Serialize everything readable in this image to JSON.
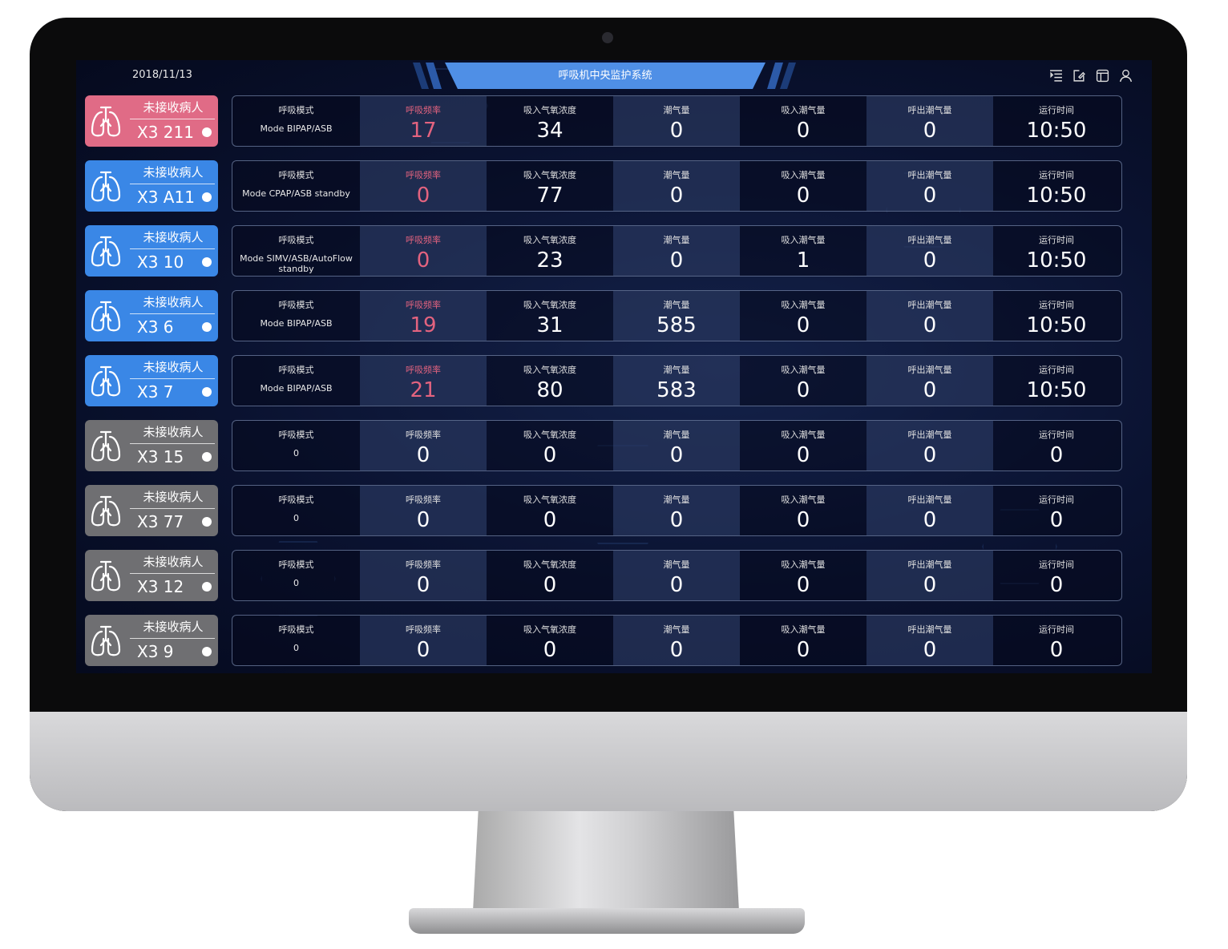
{
  "header": {
    "date": "2018/11/13",
    "title": "呼吸机中央监护系统",
    "icons": [
      "list-icon",
      "edit-icon",
      "layout-icon",
      "user-icon"
    ]
  },
  "colors": {
    "alarm": "#e06b86",
    "active": "#3a87e6",
    "inactive": "#6f6f72",
    "rate_alarm_text": "#e3637f",
    "title_bar": "#4f8fe6"
  },
  "columns": [
    "呼吸模式",
    "呼吸频率",
    "吸入气氧浓度",
    "潮气量",
    "吸入潮气量",
    "呼出潮气量",
    "运行时间"
  ],
  "rows": [
    {
      "status": "未接收病人",
      "bed": "X3 211",
      "state": "alarm",
      "mode": "Mode BIPAP/ASB",
      "values": [
        "17",
        "34",
        "0",
        "0",
        "0",
        "10:50"
      ]
    },
    {
      "status": "未接收病人",
      "bed": "X3 A11",
      "state": "active",
      "mode": "Mode CPAP/ASB standby",
      "values": [
        "0",
        "77",
        "0",
        "0",
        "0",
        "10:50"
      ]
    },
    {
      "status": "未接收病人",
      "bed": "X3 10",
      "state": "active",
      "mode": "Mode SIMV/ASB/AutoFlow standby",
      "values": [
        "0",
        "23",
        "0",
        "1",
        "0",
        "10:50"
      ]
    },
    {
      "status": "未接收病人",
      "bed": "X3 6",
      "state": "active",
      "mode": "Mode BIPAP/ASB",
      "values": [
        "19",
        "31",
        "585",
        "0",
        "0",
        "10:50"
      ]
    },
    {
      "status": "未接收病人",
      "bed": "X3 7",
      "state": "active",
      "mode": "Mode BIPAP/ASB",
      "values": [
        "21",
        "80",
        "583",
        "0",
        "0",
        "10:50"
      ]
    },
    {
      "status": "未接收病人",
      "bed": "X3 15",
      "state": "inactive",
      "mode": "0",
      "values": [
        "0",
        "0",
        "0",
        "0",
        "0",
        "0"
      ]
    },
    {
      "status": "未接收病人",
      "bed": "X3 77",
      "state": "inactive",
      "mode": "0",
      "values": [
        "0",
        "0",
        "0",
        "0",
        "0",
        "0"
      ]
    },
    {
      "status": "未接收病人",
      "bed": "X3 12",
      "state": "inactive",
      "mode": "0",
      "values": [
        "0",
        "0",
        "0",
        "0",
        "0",
        "0"
      ]
    },
    {
      "status": "未接收病人",
      "bed": "X3 9",
      "state": "inactive",
      "mode": "0",
      "values": [
        "0",
        "0",
        "0",
        "0",
        "0",
        "0"
      ]
    }
  ]
}
